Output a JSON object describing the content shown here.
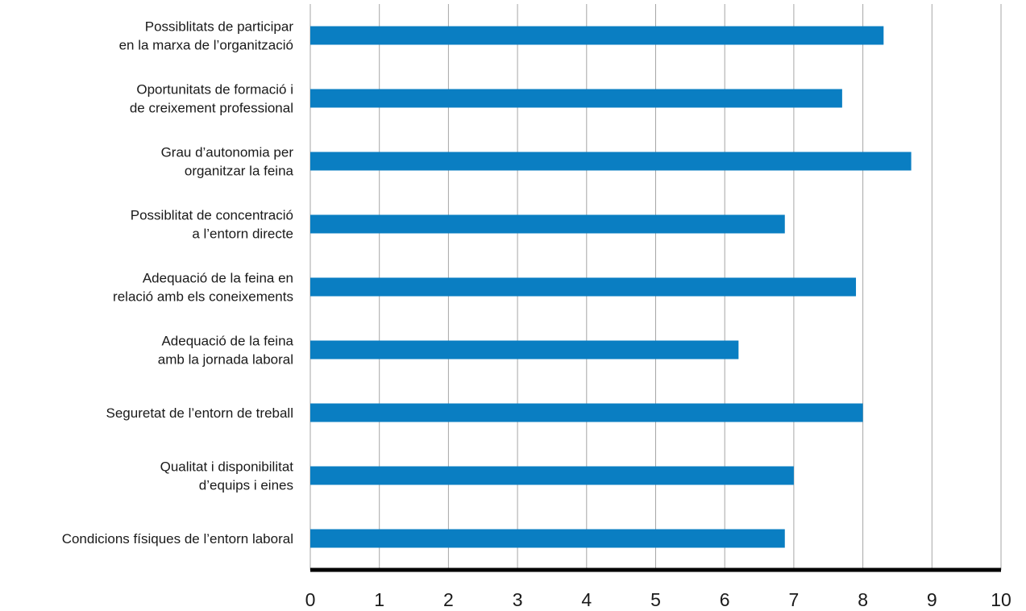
{
  "chart_data": {
    "type": "bar",
    "orientation": "horizontal",
    "title": "",
    "xlabel": "",
    "ylabel": "",
    "xlim": [
      0,
      10
    ],
    "x_ticks": [
      "0",
      "1",
      "2",
      "3",
      "4",
      "5",
      "6",
      "7",
      "8",
      "9",
      "10"
    ],
    "grid": "vertical",
    "bar_color": "#0a7ec2",
    "categories": [
      [
        "Possiblitats de participar",
        "en la marxa de l’organització"
      ],
      [
        "Oportunitats de formació i",
        "de creixement professional"
      ],
      [
        "Grau d’autonomia per",
        "organitzar la feina"
      ],
      [
        "Possiblitat de concentració",
        "a l’entorn directe"
      ],
      [
        "Adequació de la feina en",
        "relació amb els coneixements"
      ],
      [
        "Adequació de la feina",
        "amb la jornada laboral"
      ],
      [
        "Seguretat de l’entorn de treball"
      ],
      [
        "Qualitat i disponibilitat",
        "d’equips i eines"
      ],
      [
        "Condicions físiques de l’entorn laboral"
      ]
    ],
    "values": [
      8.3,
      7.7,
      8.7,
      6.87,
      7.9,
      6.2,
      8.0,
      7.0,
      6.87
    ]
  }
}
